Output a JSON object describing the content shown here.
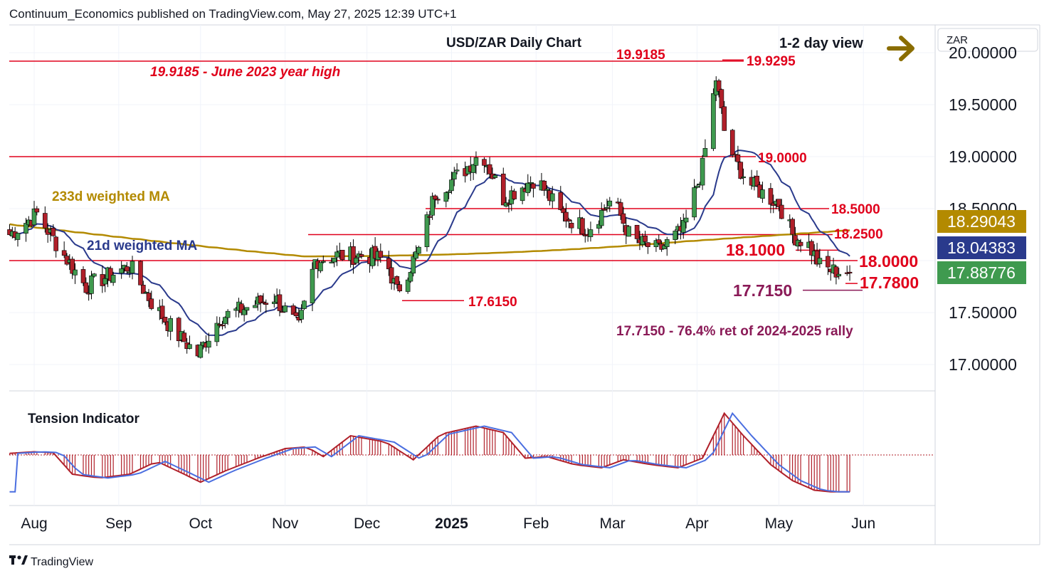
{
  "header": {
    "published": "Continuum_Economics published on TradingView.com, May 27, 2025 12:39 UTC+1",
    "title": "USD/ZAR Daily Chart",
    "view": "1-2 day view",
    "currency": "ZAR"
  },
  "footer": {
    "brand": "TradingView"
  },
  "colors": {
    "red": "#e0001b",
    "maroon": "#8a1a57",
    "ma233": "#b38a00",
    "ma21": "#2a3a8c",
    "bull": "#3f9a4f",
    "bear": "#b0202a",
    "arrow": "#8a6d00",
    "tension_line": "#4a6ee0"
  },
  "chart_data": [
    {
      "type": "candlestick",
      "title": "USD/ZAR Daily Chart",
      "subtitle": "1-2 day view",
      "y_axis_ticks": [
        "20.00000",
        "19.50000",
        "19.00000",
        "18.50000",
        "17.50000",
        "17.00000"
      ],
      "ylim": [
        16.7,
        20.3
      ],
      "x_axis_ticks": [
        "Aug",
        "Sep",
        "Oct",
        "Nov",
        "Dec",
        "2025",
        "Feb",
        "Mar",
        "Apr",
        "May",
        "Jun"
      ],
      "x_axis_bold": "2025",
      "approx_close_path": [
        {
          "x": "Jul 23",
          "y": 18.25
        },
        {
          "x": "Aug 2",
          "y": 18.45
        },
        {
          "x": "Aug 12",
          "y": 18.05
        },
        {
          "x": "Aug 20",
          "y": 17.75
        },
        {
          "x": "Aug 28",
          "y": 17.85
        },
        {
          "x": "Sep 5",
          "y": 17.95
        },
        {
          "x": "Sep 13",
          "y": 17.6
        },
        {
          "x": "Sep 22",
          "y": 17.3
        },
        {
          "x": "Sep 30",
          "y": 17.1
        },
        {
          "x": "Oct 8",
          "y": 17.45
        },
        {
          "x": "Oct 18",
          "y": 17.55
        },
        {
          "x": "Oct 28",
          "y": 17.65
        },
        {
          "x": "Nov 6",
          "y": 17.35
        },
        {
          "x": "Nov 12",
          "y": 18.0
        },
        {
          "x": "Nov 20",
          "y": 18.05
        },
        {
          "x": "Dec 1",
          "y": 18.05
        },
        {
          "x": "Dec 8",
          "y": 18.0
        },
        {
          "x": "Dec 12",
          "y": 17.7
        },
        {
          "x": "Dec 20",
          "y": 18.1
        },
        {
          "x": "Dec 26",
          "y": 18.65
        },
        {
          "x": "Jan 5",
          "y": 18.85
        },
        {
          "x": "Jan 12",
          "y": 19.05
        },
        {
          "x": "Jan 20",
          "y": 18.6
        },
        {
          "x": "Feb 1",
          "y": 18.8
        },
        {
          "x": "Feb 10",
          "y": 18.45
        },
        {
          "x": "Feb 20",
          "y": 18.3
        },
        {
          "x": "Mar 1",
          "y": 18.6
        },
        {
          "x": "Mar 8",
          "y": 18.2
        },
        {
          "x": "Mar 18",
          "y": 18.1
        },
        {
          "x": "Mar 27",
          "y": 18.3
        },
        {
          "x": "Apr 3",
          "y": 18.9
        },
        {
          "x": "Apr 8",
          "y": 19.75
        },
        {
          "x": "Apr 11",
          "y": 19.25
        },
        {
          "x": "Apr 15",
          "y": 18.95
        },
        {
          "x": "Apr 20",
          "y": 18.75
        },
        {
          "x": "Apr 25",
          "y": 18.65
        },
        {
          "x": "May 1",
          "y": 18.55
        },
        {
          "x": "May 6",
          "y": 18.25
        },
        {
          "x": "May 12",
          "y": 18.15
        },
        {
          "x": "May 16",
          "y": 17.95
        },
        {
          "x": "May 21",
          "y": 17.9
        },
        {
          "x": "May 27",
          "y": 17.89
        }
      ],
      "price_badges": [
        {
          "label": "18.29043",
          "series": "233d weighted MA",
          "color": "#b38a00"
        },
        {
          "label": "18.04383",
          "series": "21d weighted MA",
          "color": "#2a3a8c"
        },
        {
          "label": "17.88776",
          "series": "USD/ZAR",
          "color": "#3f9a4f"
        }
      ],
      "levels": [
        {
          "value": 19.9185,
          "label": "19.9185"
        },
        {
          "value": 19.9295,
          "label": "19.9295"
        },
        {
          "value": 19.0,
          "label": "19.0000"
        },
        {
          "value": 18.5,
          "label": "18.5000"
        },
        {
          "value": 18.25,
          "label": "18.2500"
        },
        {
          "value": 18.1,
          "label": "18.1000"
        },
        {
          "value": 18.0,
          "label": "18.0000"
        },
        {
          "value": 17.78,
          "label": "17.7800"
        },
        {
          "value": 17.715,
          "label": "17.7150"
        },
        {
          "value": 17.615,
          "label": "17.6150"
        }
      ],
      "annotations": [
        "19.9185 - June 2023 year high",
        "17.7150 - 76.4% ret of 2024-2025 rally",
        "233d weighted MA",
        "21d weighted MA"
      ]
    },
    {
      "type": "area",
      "title": "Tension Indicator",
      "approx_values": [
        {
          "x": "Jul 23",
          "y": 0.05
        },
        {
          "x": "Aug 1",
          "y": 0.1
        },
        {
          "x": "Aug 8",
          "y": 0.07
        },
        {
          "x": "Aug 15",
          "y": -0.6
        },
        {
          "x": "Aug 25",
          "y": -0.72
        },
        {
          "x": "Sep 5",
          "y": -0.6
        },
        {
          "x": "Sep 15",
          "y": -0.2
        },
        {
          "x": "Sep 25",
          "y": -0.6
        },
        {
          "x": "Oct 1",
          "y": -0.85
        },
        {
          "x": "Oct 10",
          "y": -0.5
        },
        {
          "x": "Oct 22",
          "y": -0.1
        },
        {
          "x": "Nov 1",
          "y": 0.2
        },
        {
          "x": "Nov 9",
          "y": 0.25
        },
        {
          "x": "Nov 15",
          "y": -0.05
        },
        {
          "x": "Nov 25",
          "y": 0.6
        },
        {
          "x": "Dec 8",
          "y": 0.4
        },
        {
          "x": "Dec 18",
          "y": -0.15
        },
        {
          "x": "Dec 28",
          "y": 0.65
        },
        {
          "x": "Jan 10",
          "y": 0.9
        },
        {
          "x": "Jan 20",
          "y": 0.7
        },
        {
          "x": "Jan 28",
          "y": -0.1
        },
        {
          "x": "Feb 5",
          "y": -0.05
        },
        {
          "x": "Feb 15",
          "y": -0.3
        },
        {
          "x": "Feb 25",
          "y": -0.4
        },
        {
          "x": "Mar 5",
          "y": -0.15
        },
        {
          "x": "Mar 15",
          "y": -0.3
        },
        {
          "x": "Mar 25",
          "y": -0.4
        },
        {
          "x": "Apr 3",
          "y": -0.1
        },
        {
          "x": "Apr 11",
          "y": 1.3
        },
        {
          "x": "Apr 18",
          "y": 0.6
        },
        {
          "x": "Apr 28",
          "y": -0.3
        },
        {
          "x": "May 6",
          "y": -0.8
        },
        {
          "x": "May 14",
          "y": -1.1
        },
        {
          "x": "May 20",
          "y": -1.15
        },
        {
          "x": "May 27",
          "y": -1.15
        }
      ]
    }
  ]
}
